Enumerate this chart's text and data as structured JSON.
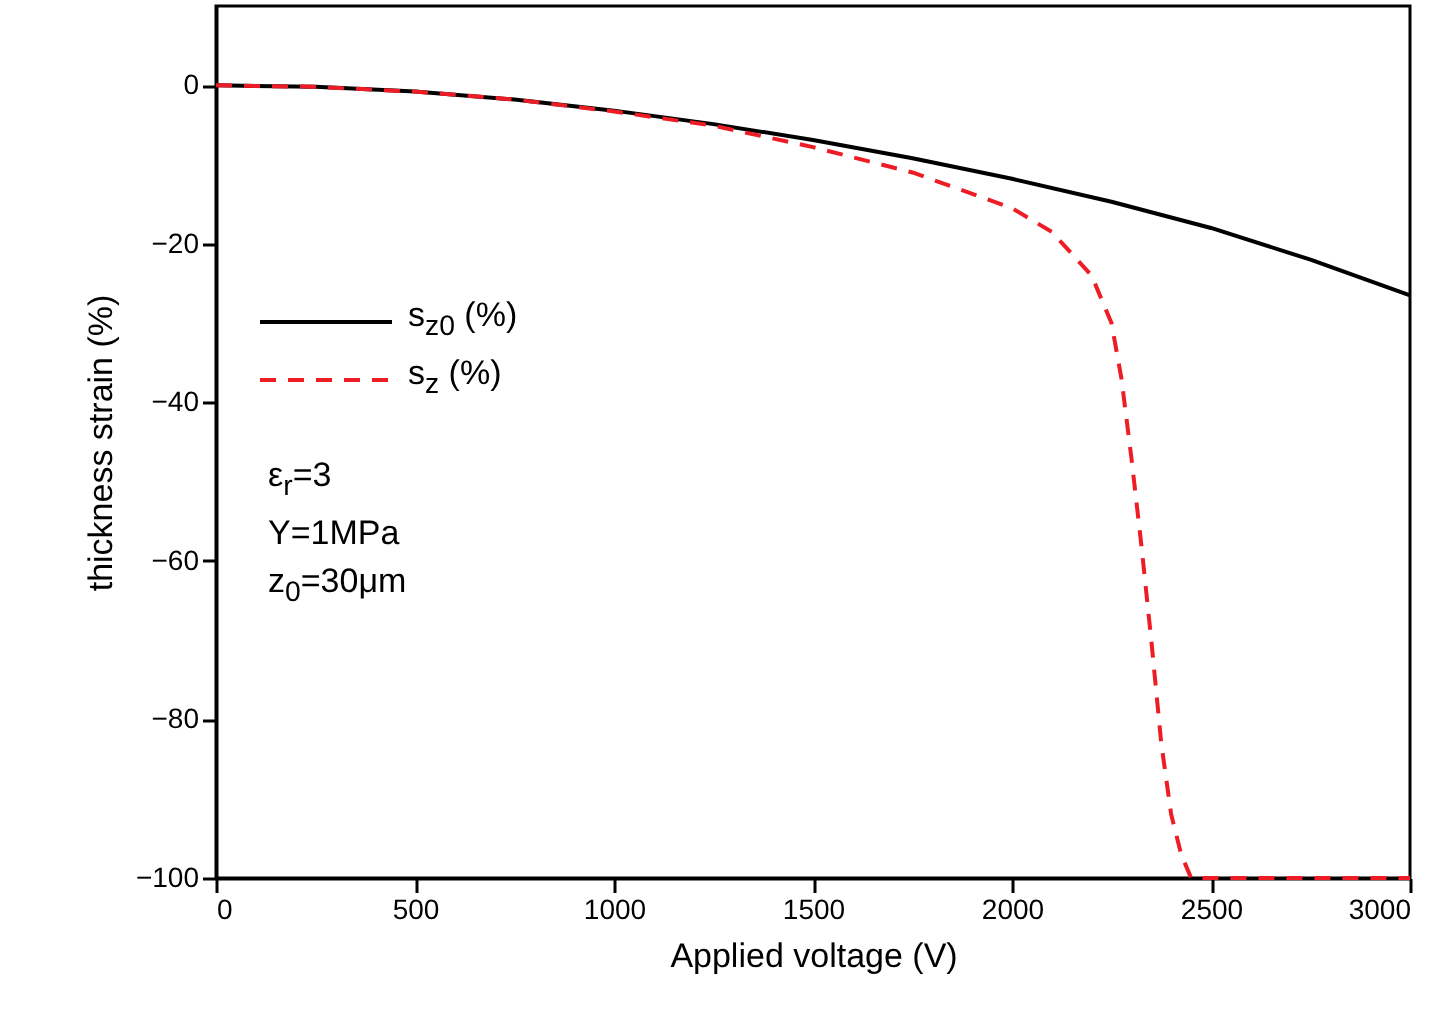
{
  "chart_data": {
    "type": "line",
    "xlabel": "Applied voltage (V)",
    "ylabel": "thickness strain (%)",
    "xlim": [
      0,
      3000
    ],
    "xticks": [
      0,
      500,
      1000,
      1500,
      2000,
      2500,
      3000
    ],
    "ylim": [
      -100,
      10
    ],
    "yticks": [
      -100,
      -80,
      -60,
      -40,
      -20,
      0
    ],
    "legend": "left",
    "marker": "none",
    "annotations": [
      "ε$_{r}$=3",
      "Y=1MPa",
      "z$_{0}$=30μm"
    ],
    "series": [
      {
        "name": "s$_{z0}$ (%)",
        "color": "#000000",
        "line_style": "solid",
        "x": [
          0,
          250,
          500,
          750,
          1000,
          1250,
          1500,
          1750,
          2000,
          2250,
          2500,
          2750,
          3000
        ],
        "values": [
          0,
          -0.2,
          -0.8,
          -1.8,
          -3.2,
          -4.9,
          -6.9,
          -9.2,
          -11.8,
          -14.7,
          -18,
          -22,
          -26.5
        ]
      },
      {
        "name": "s$_{z}$ (%)",
        "color": "#ee1c25",
        "line_style": "dashed",
        "x": [
          0,
          250,
          500,
          750,
          1000,
          1250,
          1500,
          1750,
          2000,
          2100,
          2200,
          2250,
          2275,
          2300,
          2325,
          2350,
          2375,
          2400,
          2425,
          2450,
          2500,
          3000
        ],
        "values": [
          0,
          -0.2,
          -0.8,
          -1.8,
          -3.3,
          -5.1,
          -7.8,
          -11,
          -15.5,
          -18.5,
          -24,
          -30,
          -37,
          -47,
          -58,
          -70,
          -83,
          -92,
          -97,
          -100,
          -100,
          -100
        ]
      }
    ]
  }
}
